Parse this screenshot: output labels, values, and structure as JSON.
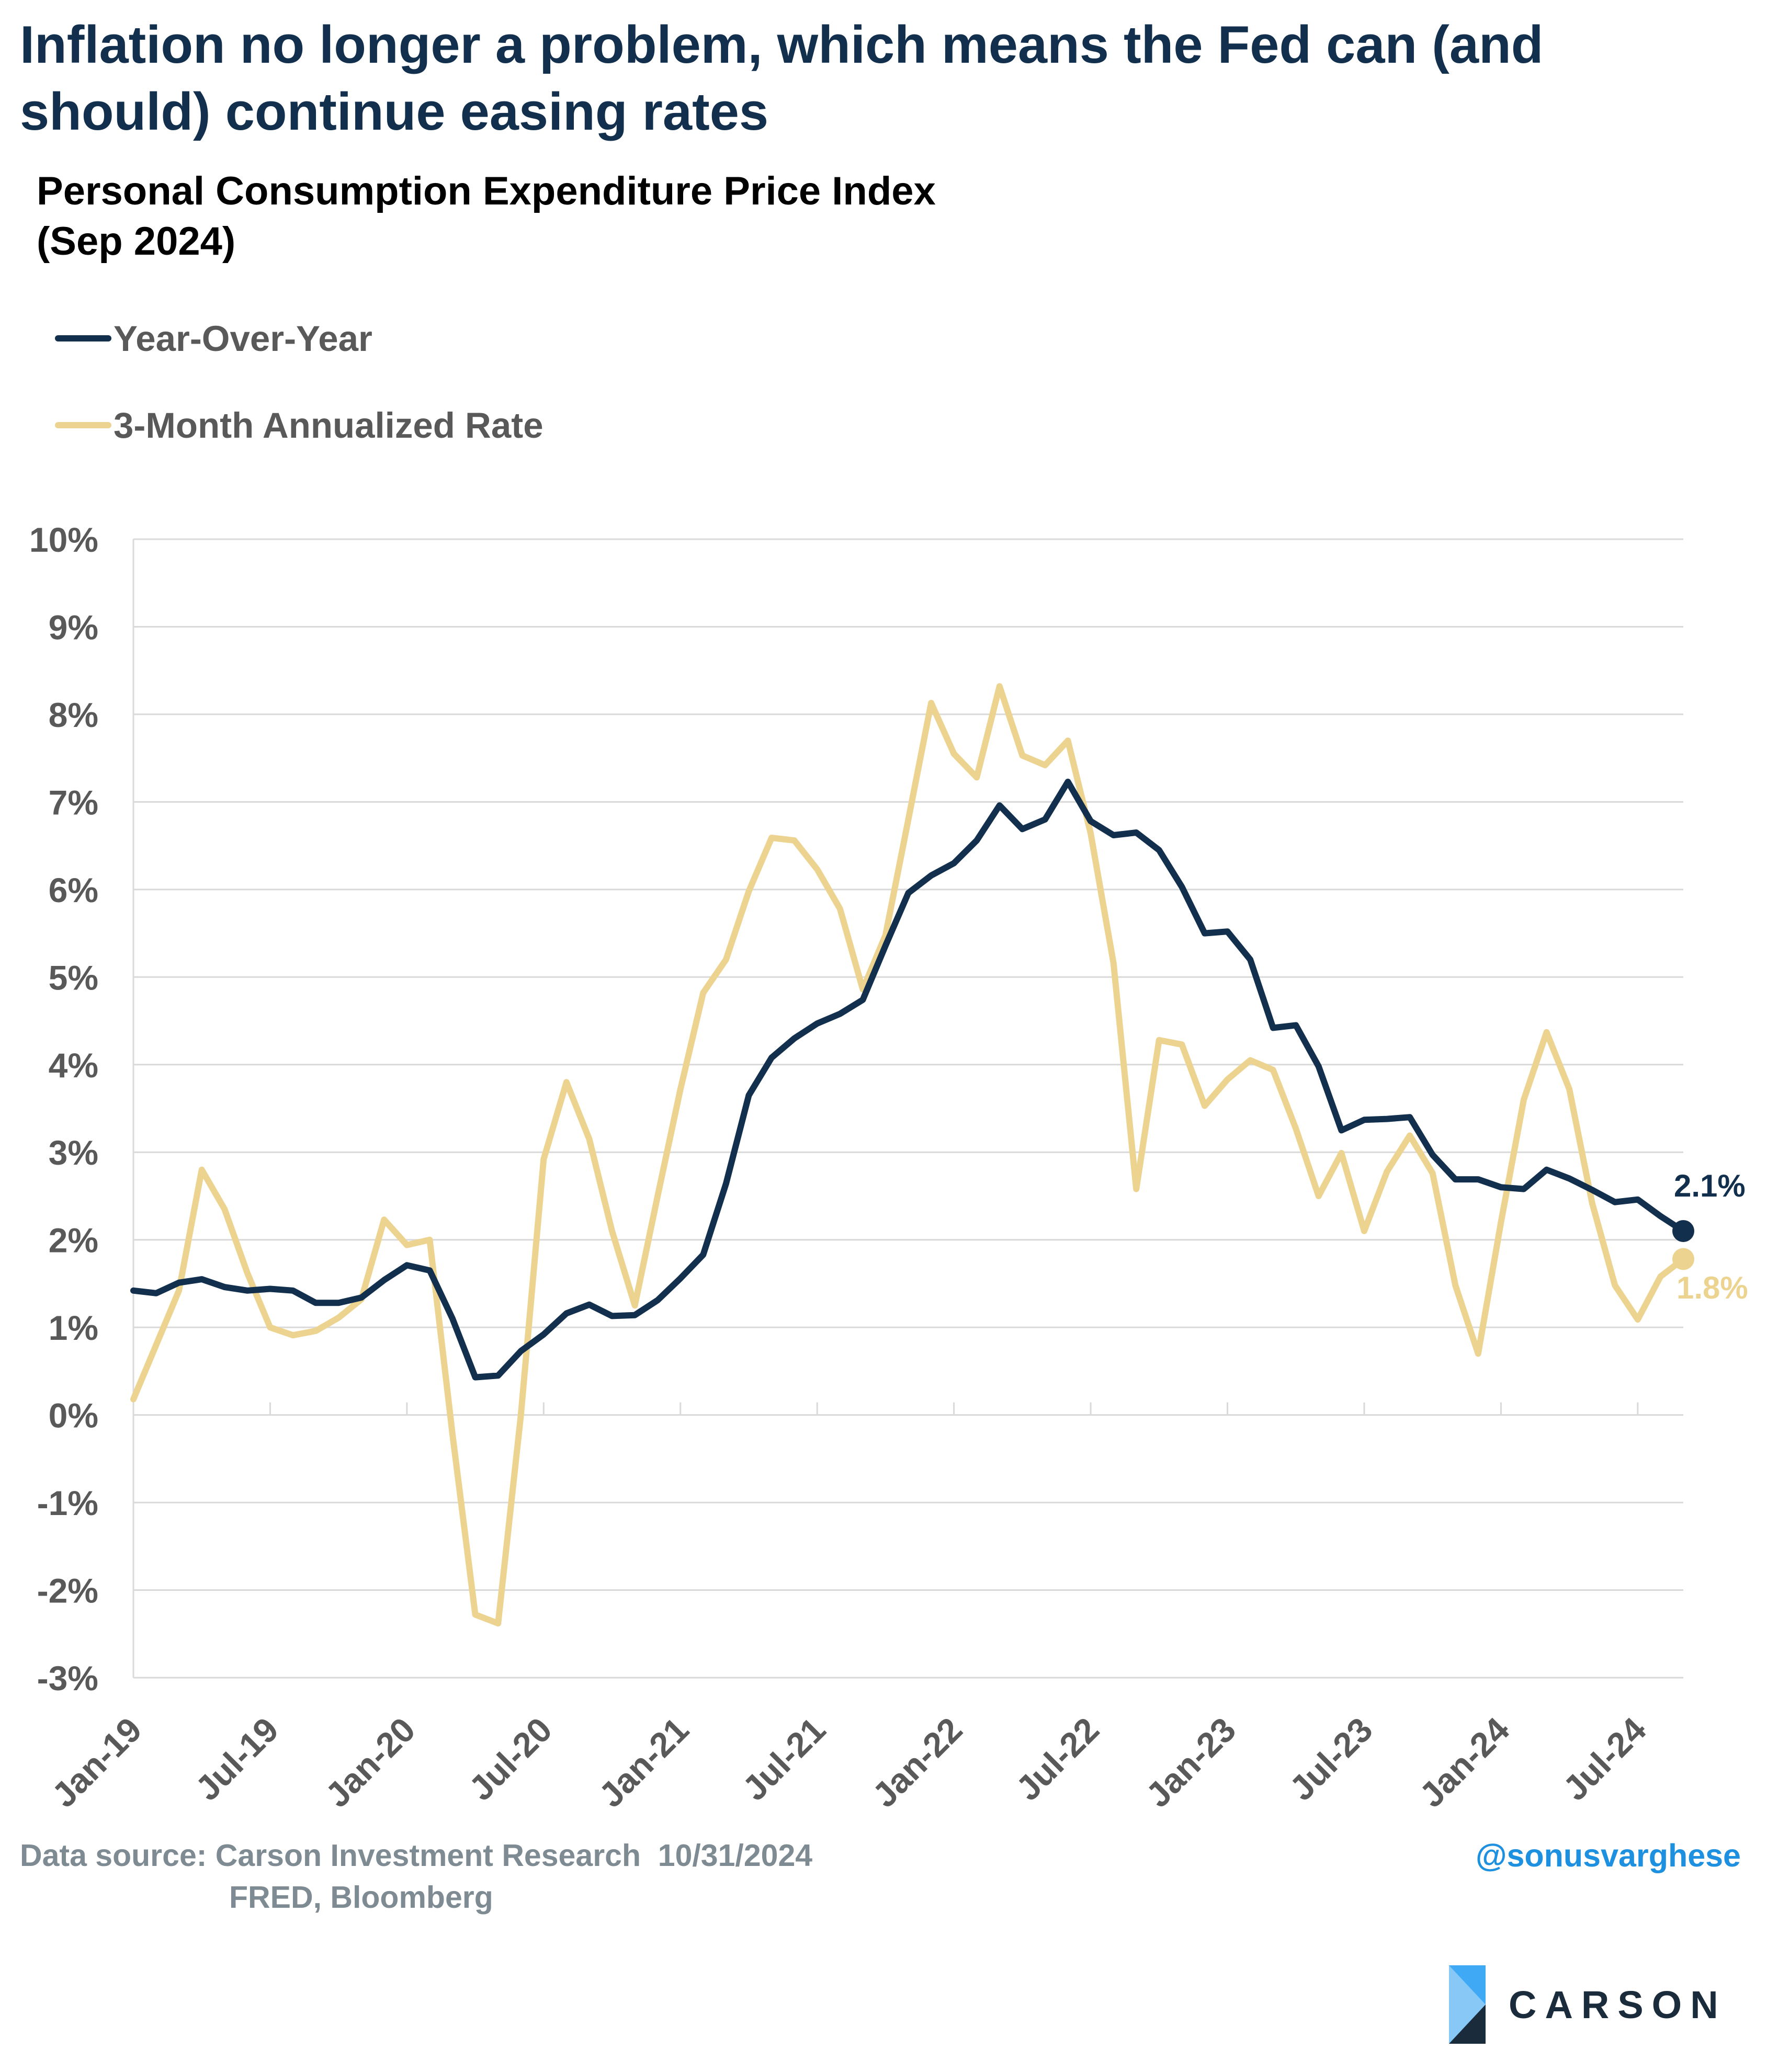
{
  "header": {
    "title": "Inflation no longer a problem, which means the Fed can (and should) continue easing rates",
    "subtitle_line1": "Personal Consumption Expenditure Price Index",
    "subtitle_line2": "(Sep 2024)"
  },
  "footer": {
    "source_line1": "Data source: Carson Investment Research  10/31/2024",
    "source_line2": "FRED, Bloomberg",
    "handle": "@sonusvarghese",
    "brand": "CARSON"
  },
  "colors": {
    "yoy": "#12304d",
    "three_month": "#ecd490",
    "grid": "#d9d9d9",
    "tick_text": "#595959",
    "brand_blue": "#3fa9f5"
  },
  "chart_data": {
    "type": "line",
    "title": "Personal Consumption Expenditure Price Index",
    "subtitle": "(Sep 2024)",
    "x_start": "Jan-19",
    "x_end": "Sep-24",
    "x_tick_labels": [
      "Jan-19",
      "Jul-19",
      "Jan-20",
      "Jul-20",
      "Jan-21",
      "Jul-21",
      "Jan-22",
      "Jul-22",
      "Jan-23",
      "Jul-23",
      "Jan-24",
      "Jul-24"
    ],
    "y_tick_labels": [
      "10%",
      "9%",
      "8%",
      "7%",
      "6%",
      "5%",
      "4%",
      "3%",
      "2%",
      "1%",
      "0%",
      "-1%",
      "-2%",
      "-3%"
    ],
    "ylim": [
      -3,
      10
    ],
    "y_unit": "%",
    "grid": "horizontal",
    "legend_position": "top-left",
    "series": [
      {
        "name": "Year-Over-Year",
        "color": "#12304d",
        "end_label": "2.1%",
        "values": [
          1.42,
          1.39,
          1.51,
          1.55,
          1.46,
          1.42,
          1.44,
          1.42,
          1.28,
          1.28,
          1.34,
          1.54,
          1.71,
          1.65,
          1.1,
          0.43,
          0.45,
          0.73,
          0.92,
          1.16,
          1.26,
          1.13,
          1.14,
          1.31,
          1.56,
          1.83,
          2.64,
          3.65,
          4.08,
          4.3,
          4.47,
          4.58,
          4.74,
          5.36,
          5.96,
          6.16,
          6.3,
          6.56,
          6.96,
          6.69,
          6.8,
          7.23,
          6.78,
          6.62,
          6.65,
          6.45,
          6.03,
          5.5,
          5.52,
          5.2,
          4.42,
          4.45,
          3.98,
          3.25,
          3.37,
          3.38,
          3.4,
          2.97,
          2.69,
          2.69,
          2.6,
          2.58,
          2.8,
          2.7,
          2.57,
          2.43,
          2.46,
          2.27,
          2.1
        ]
      },
      {
        "name": "3-Month Annualized Rate",
        "color": "#ecd490",
        "end_label": "1.8%",
        "values": [
          0.18,
          0.8,
          1.42,
          2.8,
          2.35,
          1.62,
          1.0,
          0.91,
          0.96,
          1.11,
          1.32,
          2.23,
          1.94,
          2.0,
          -0.22,
          -2.28,
          -2.38,
          0.0,
          2.92,
          3.8,
          3.15,
          2.1,
          1.25,
          2.5,
          3.72,
          4.82,
          5.2,
          5.98,
          6.59,
          6.56,
          6.23,
          5.78,
          4.86,
          5.48,
          6.8,
          8.13,
          7.55,
          7.28,
          8.32,
          7.53,
          7.42,
          7.7,
          6.64,
          5.16,
          2.58,
          4.28,
          4.23,
          3.53,
          3.83,
          4.05,
          3.94,
          3.27,
          2.5,
          2.99,
          2.1,
          2.78,
          3.19,
          2.76,
          1.48,
          0.7,
          2.2,
          3.6,
          4.37,
          3.72,
          2.42,
          1.48,
          1.09,
          1.58,
          1.78
        ]
      }
    ]
  }
}
